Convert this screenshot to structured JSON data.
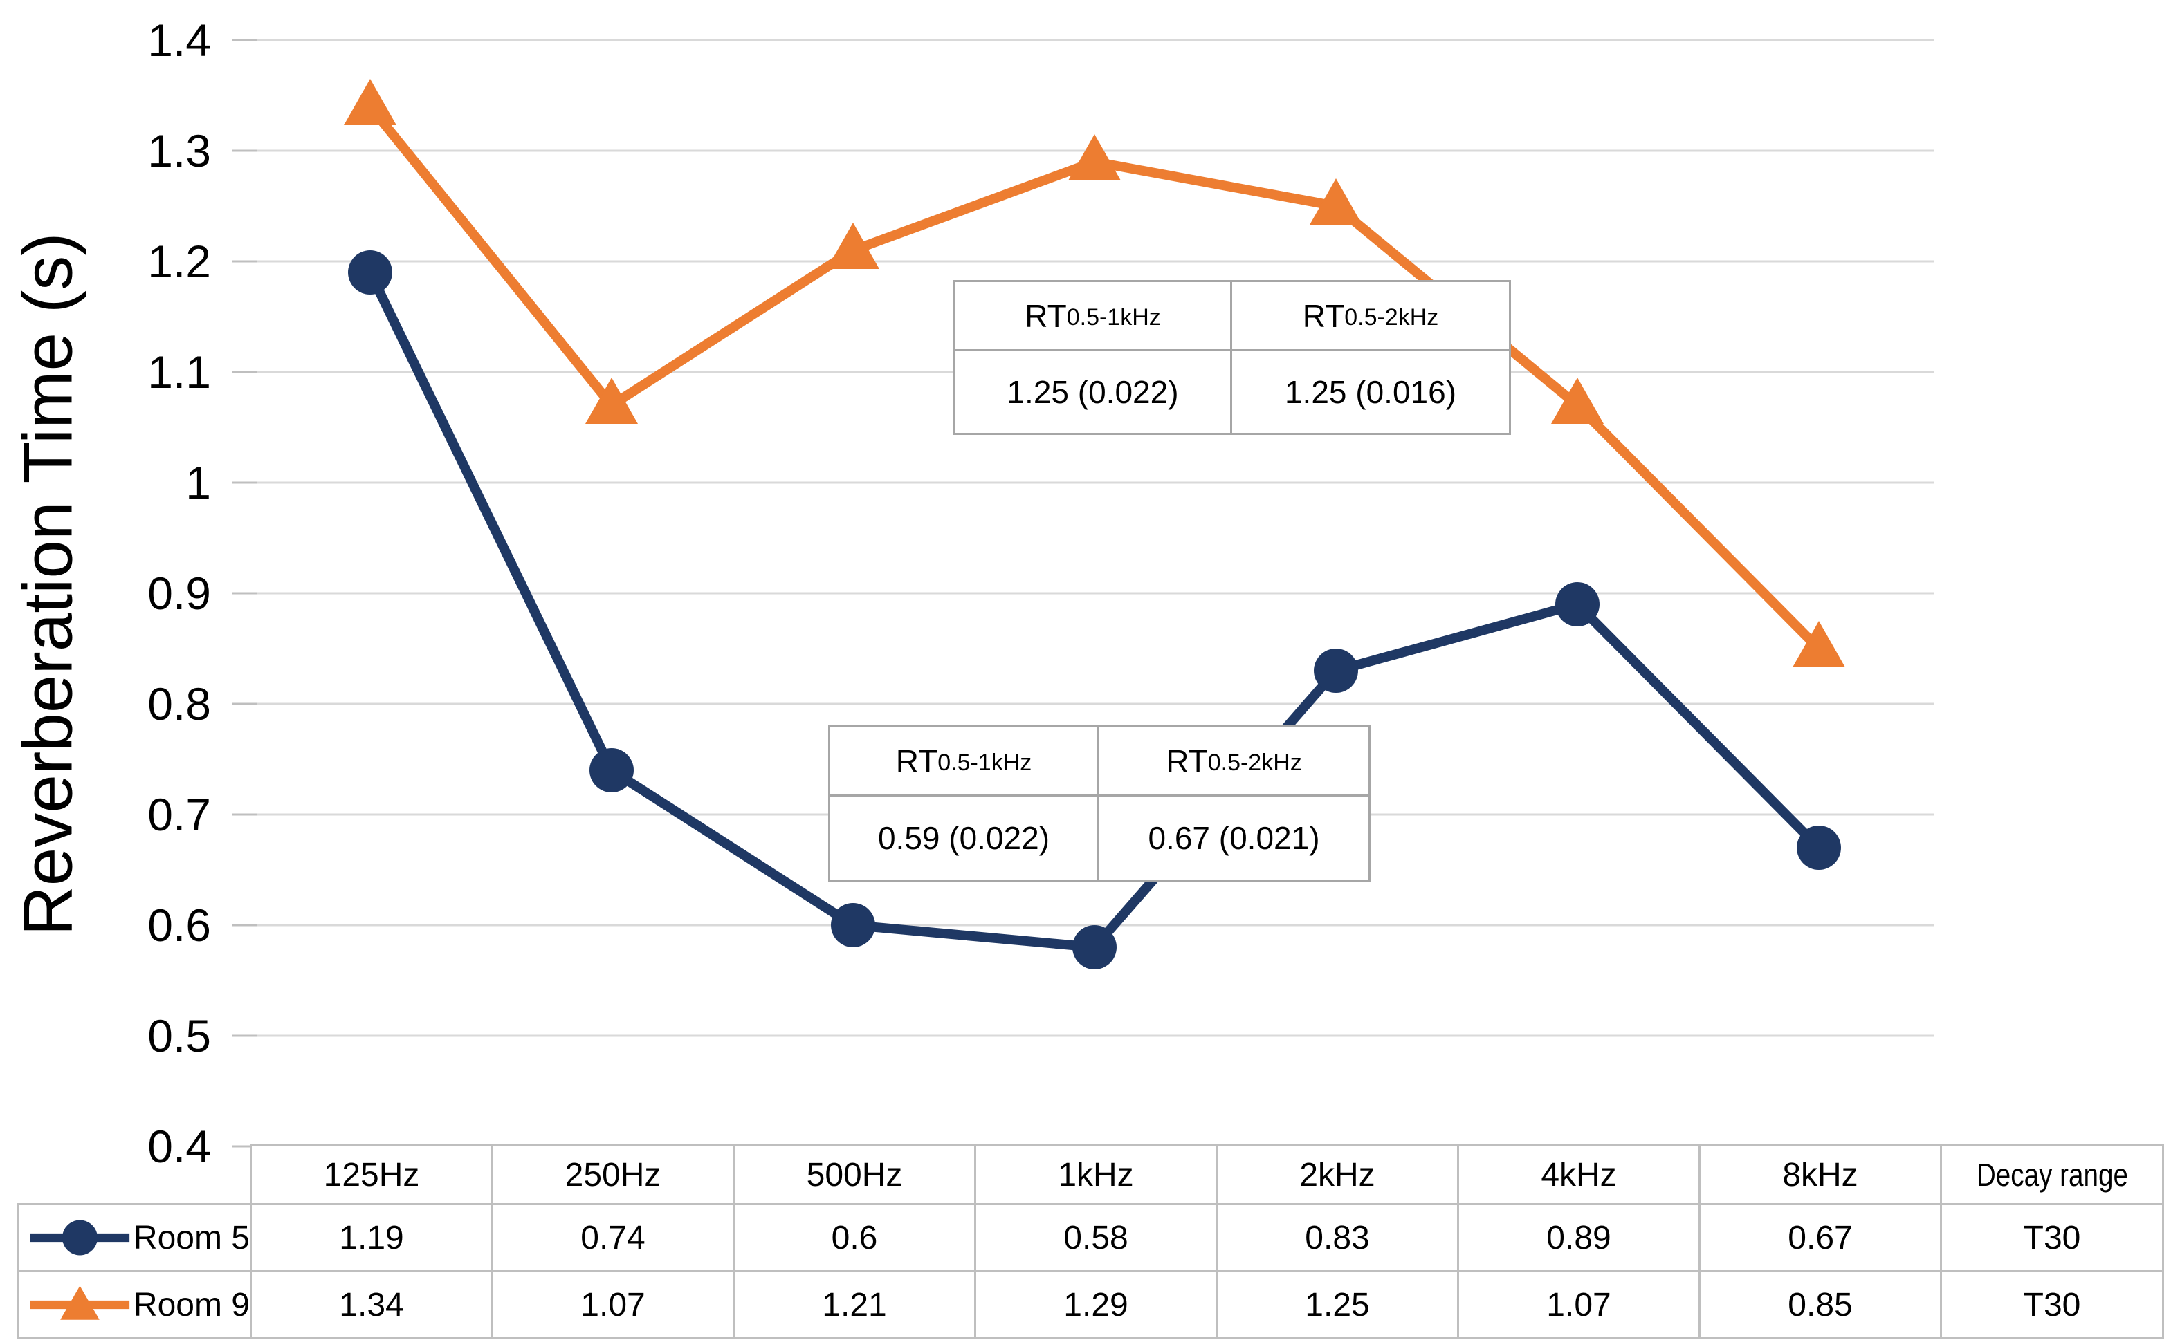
{
  "chart_data": {
    "type": "line",
    "title": "",
    "xlabel": "",
    "ylabel": "Reverberation Time (s)",
    "categories": [
      "125Hz",
      "250Hz",
      "500Hz",
      "1kHz",
      "2kHz",
      "4kHz",
      "8kHz"
    ],
    "series": [
      {
        "name": "Room 5",
        "marker": "circle",
        "color": "#1F3864",
        "values": [
          1.19,
          0.74,
          0.6,
          0.58,
          0.83,
          0.89,
          0.67
        ],
        "decay_range": "T30"
      },
      {
        "name": "Room 9",
        "marker": "triangle",
        "color": "#ED7D31",
        "values": [
          1.34,
          1.07,
          1.21,
          1.29,
          1.25,
          1.07,
          0.85
        ],
        "decay_range": "T30"
      }
    ],
    "ylim": [
      0.4,
      1.4
    ],
    "yticks": [
      1.4,
      1.3,
      1.2,
      1.1,
      1,
      0.9,
      0.8,
      0.7,
      0.6,
      0.5,
      0.4
    ],
    "ytick_labels": [
      "1.4",
      "1.3",
      "1.2",
      "1.1",
      "1",
      "0.9",
      "0.8",
      "0.7",
      "0.6",
      "0.5",
      "0.4"
    ],
    "grid": true,
    "legend_position": "table-left",
    "annotations": [
      {
        "position": "upper",
        "cells": [
          {
            "prefix": "RT",
            "sub": "0.5-1kHz",
            "value": "1.25 (0.022)"
          },
          {
            "prefix": "RT",
            "sub": "0.5-2kHz",
            "value": "1.25 (0.016)"
          }
        ]
      },
      {
        "position": "lower",
        "cells": [
          {
            "prefix": "RT",
            "sub": "0.5-1kHz",
            "value": "0.59 (0.022)"
          },
          {
            "prefix": "RT",
            "sub": "0.5-2kHz",
            "value": "0.67 (0.021)"
          }
        ]
      }
    ],
    "table": {
      "decay_header": "Decay range"
    }
  },
  "colors": {
    "gridline": "#D9D9D9",
    "tick": "#BFBFBF",
    "table_border": "#BFBFBF",
    "annotation_border": "#A6A6A6",
    "text": "#000000"
  }
}
